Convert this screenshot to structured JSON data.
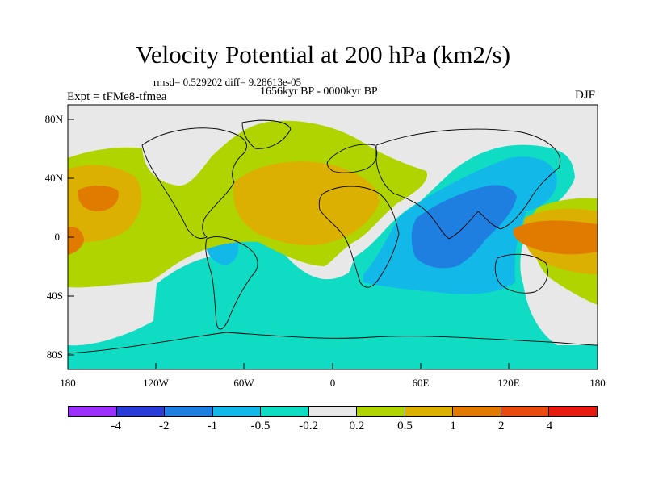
{
  "title": "Velocity Potential at 200 hPa (km2/s)",
  "stats": "rmsd= 0.529202 diff= 9.28613e-05",
  "period": "1656kyr BP - 0000kyr BP",
  "experiment": "Expt = tFMe8-tfmea",
  "season": "DJF",
  "lat_ticks": [
    "80N",
    "40N",
    "0",
    "40S",
    "80S"
  ],
  "lon_ticks": [
    "180",
    "120W",
    "60W",
    "0",
    "60E",
    "120E",
    "180"
  ],
  "colorbar": {
    "labels": [
      "-4",
      "-2",
      "-1",
      "-0.5",
      "-0.2",
      "0.2",
      "0.5",
      "1",
      "2",
      "4"
    ],
    "colors": [
      "#9b30ff",
      "#2a3cd8",
      "#1f7fe0",
      "#12b8e8",
      "#10dcc4",
      "#e8e8e8",
      "#b0d400",
      "#dcb000",
      "#e07b00",
      "#e84a10",
      "#e81a10"
    ]
  },
  "colors": {
    "c_neg2": "#1f7fe0",
    "c_neg1": "#12b8e8",
    "c_neg05": "#10dcc4",
    "c_zero": "#e8e8e8",
    "c_pos02": "#b0d400",
    "c_pos05": "#dcb000",
    "c_pos1": "#e07b00"
  },
  "chart_data": {
    "type": "heatmap",
    "title": "Velocity Potential at 200 hPa (km2/s)",
    "xlabel": "",
    "ylabel": "",
    "x_range": [
      -180,
      180
    ],
    "y_range": [
      -90,
      90
    ],
    "contour_levels": [
      -4,
      -2,
      -1,
      -0.5,
      -0.2,
      0.2,
      0.5,
      1,
      2,
      4
    ]
  }
}
